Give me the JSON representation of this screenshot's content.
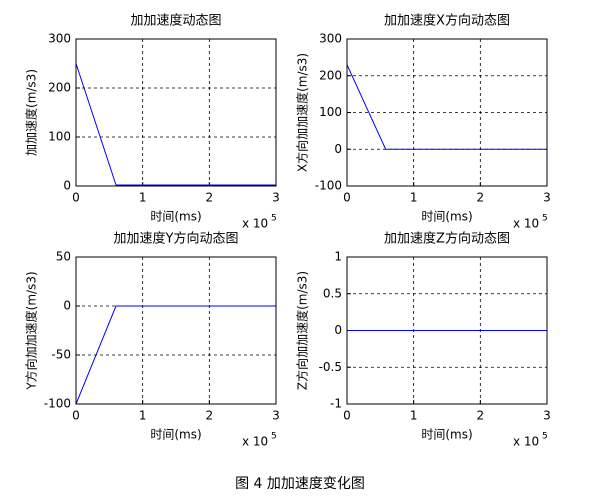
{
  "caption": "图 4 加加速度变化图",
  "chart_data": [
    {
      "type": "line",
      "title": "加加速度动态图",
      "xlabel": "时间(ms)",
      "ylabel": "加加速度(m/s3)",
      "x_multiplier": "x 10",
      "x_exponent": "5",
      "x": [
        0,
        0.6,
        3
      ],
      "values": [
        250,
        2,
        2
      ],
      "color": "#0000ff",
      "xlim": [
        0,
        3
      ],
      "xticks": [
        0,
        1,
        2,
        3
      ],
      "ylim": [
        0,
        300
      ],
      "yticks": [
        0,
        100,
        200,
        300
      ],
      "grid": true
    },
    {
      "type": "line",
      "title": "加加速度X方向动态图",
      "xlabel": "时间(ms)",
      "ylabel": "X方向加加速度(m/s3)",
      "x_multiplier": "x 10",
      "x_exponent": "5",
      "x": [
        0,
        0.58,
        3
      ],
      "values": [
        230,
        0,
        0
      ],
      "color": "#0000ff",
      "xlim": [
        0,
        3
      ],
      "xticks": [
        0,
        1,
        2,
        3
      ],
      "ylim": [
        -100,
        300
      ],
      "yticks": [
        -100,
        0,
        100,
        200,
        300
      ],
      "grid": true
    },
    {
      "type": "line",
      "title": "加加速度Y方向动态图",
      "xlabel": "时间(ms)",
      "ylabel": "Y方向加加速度(m/s3)",
      "x_multiplier": "x 10",
      "x_exponent": "5",
      "x": [
        0,
        0.6,
        3
      ],
      "values": [
        -100,
        0,
        0
      ],
      "color": "#0000ff",
      "xlim": [
        0,
        3
      ],
      "xticks": [
        0,
        1,
        2,
        3
      ],
      "ylim": [
        -100,
        50
      ],
      "yticks": [
        -100,
        -50,
        0,
        50
      ],
      "grid": true
    },
    {
      "type": "line",
      "title": "加加速度Z方向动态图",
      "xlabel": "时间(ms)",
      "ylabel": "Z方向加加速度(m/s3)",
      "x_multiplier": "x 10",
      "x_exponent": "5",
      "x": [
        0,
        3
      ],
      "values": [
        0,
        0
      ],
      "color": "#0000ff",
      "xlim": [
        0,
        3
      ],
      "xticks": [
        0,
        1,
        2,
        3
      ],
      "ylim": [
        -1,
        1
      ],
      "yticks": [
        -1,
        -0.5,
        0,
        0.5,
        1
      ],
      "grid": true
    }
  ]
}
